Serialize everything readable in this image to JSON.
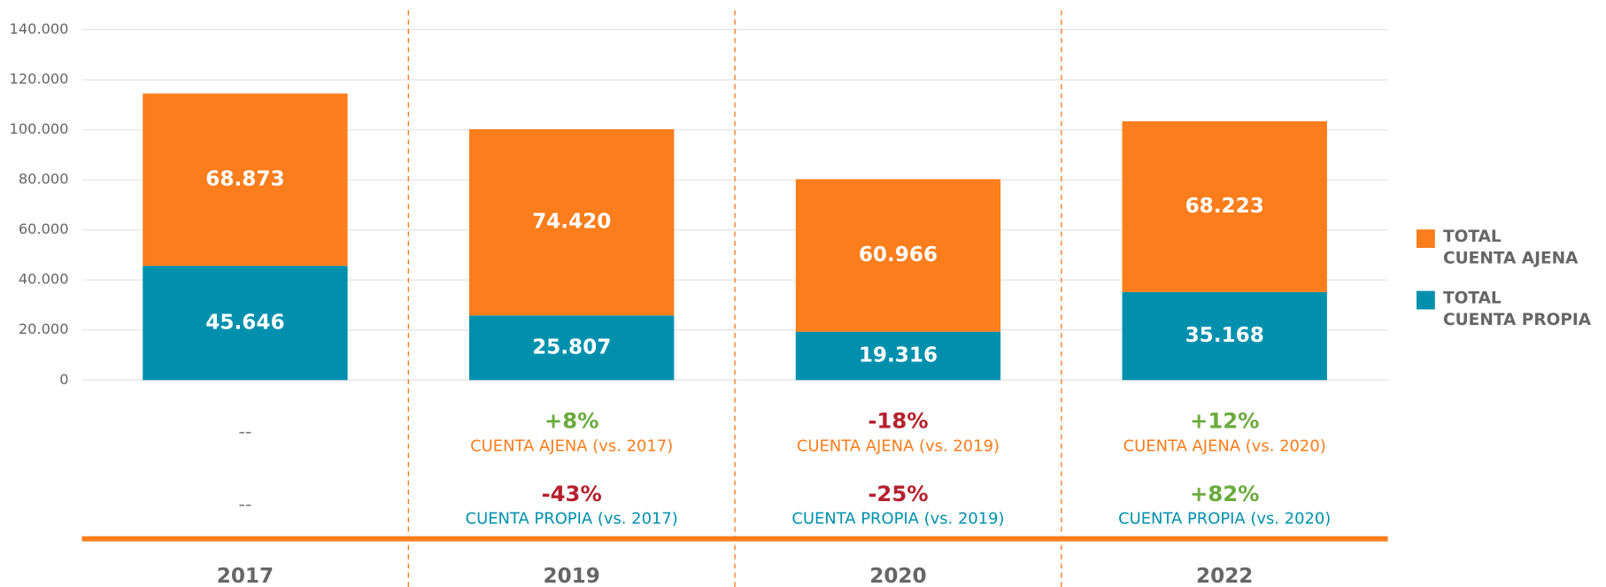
{
  "chart_data": {
    "type": "stacked_bar",
    "categories": [
      "2017",
      "2019",
      "2020",
      "2022"
    ],
    "series": [
      {
        "name": "TOTAL\nCUENTA PROPIA",
        "color": "#0090ae",
        "values": [
          45646,
          25807,
          19316,
          35168
        ],
        "value_labels": [
          "45.646",
          "25.807",
          "19.316",
          "35.168"
        ]
      },
      {
        "name": "TOTAL\nCUENTA AJENA",
        "color": "#fb7d1b",
        "values": [
          68873,
          74420,
          60966,
          68223
        ],
        "value_labels": [
          "68.873",
          "74.420",
          "60.966",
          "68.223"
        ]
      }
    ],
    "ylim": [
      0,
      140000
    ],
    "yticks": [
      0,
      {
        "value": 20000,
        "label": "20.000"
      },
      {
        "value": 40000,
        "label": "40.000"
      },
      {
        "value": 60000,
        "label": "60.000"
      },
      {
        "value": 80000,
        "label": "80.000"
      },
      {
        "value": 100000,
        "label": "100.000"
      },
      {
        "value": 120000,
        "label": "120.000"
      },
      {
        "value": 140000,
        "label": "140.000"
      }
    ],
    "grid": true,
    "legend": "right",
    "annotations": [
      {
        "ajena": {
          "change": "--",
          "color": "#777777"
        },
        "propia": {
          "change": "--",
          "color": "#777777"
        }
      },
      {
        "ajena": {
          "change": "+8%",
          "color": "#6aab3c",
          "label": "CUENTA AJENA (vs. 2017)"
        },
        "propia": {
          "change": "-43%",
          "color": "#b5202e",
          "label": "CUENTA PROPIA (vs. 2017)"
        }
      },
      {
        "ajena": {
          "change": "-18%",
          "color": "#b5202e",
          "label": "CUENTA AJENA (vs. 2019)"
        },
        "propia": {
          "change": "-25%",
          "color": "#b5202e",
          "label": "CUENTA PROPIA (vs. 2019)"
        }
      },
      {
        "ajena": {
          "change": "+12%",
          "color": "#6aab3c",
          "label": "CUENTA AJENA (vs. 2020)"
        },
        "propia": {
          "change": "+82%",
          "color": "#6aab3c",
          "label": "CUENTA PROPIA (vs. 2020)"
        }
      }
    ]
  }
}
